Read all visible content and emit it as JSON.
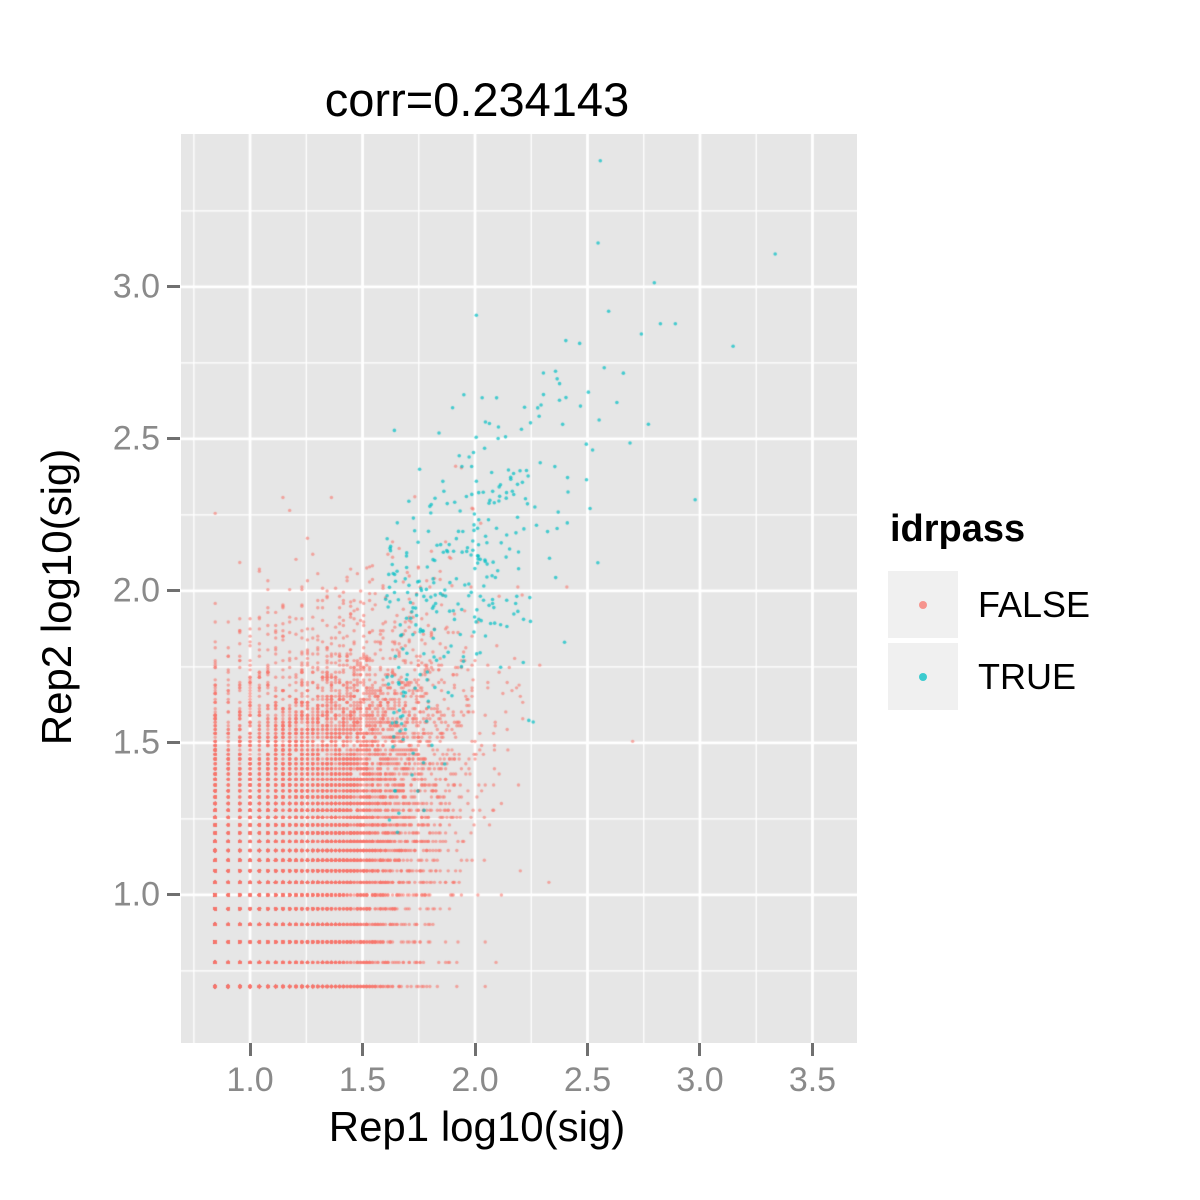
{
  "chart_data": {
    "type": "scatter",
    "title": "corr=0.234143",
    "xlabel": "Rep1 log10(sig)",
    "ylabel": "Rep2 log10(sig)",
    "xlim": [
      0.693,
      3.698
    ],
    "ylim": [
      0.513,
      3.503
    ],
    "x_ticks": [
      1.0,
      1.5,
      2.0,
      2.5,
      3.0,
      3.5
    ],
    "y_ticks": [
      1.0,
      1.5,
      2.0,
      2.5,
      3.0
    ],
    "minor_grid_offset": 0.25,
    "grid": true,
    "panel_bg": "#E6E6E6",
    "grid_major_color": "#FFFFFF",
    "grid_minor_color": "#FFFFFF",
    "tick_mark_color": "#707070",
    "tick_label_color": "#8A8A8A",
    "legend": {
      "title": "idrpass",
      "position": "right",
      "key_bg": "#F0F0F0",
      "entries": [
        {
          "label": "FALSE",
          "color": "#F8766D"
        },
        {
          "label": "TRUE",
          "color": "#00BFC4"
        }
      ]
    },
    "series": [
      {
        "name": "FALSE",
        "color": "#F8766D",
        "alpha": 0.6,
        "point_radius": 1.7,
        "n": 10000,
        "generator": {
          "kind": "censored-quantized-gaussian",
          "seed": 20240601,
          "x_mean": 1.24,
          "x_sd": 0.32,
          "y_mean": 1.19,
          "y_sd": 0.31,
          "xy_corr": 0.35,
          "x_max": 2.75,
          "y_max": 2.55,
          "sig_quantum": 1,
          "x_min_sig": 7,
          "y_min_sig": 5
        }
      },
      {
        "name": "TRUE",
        "color": "#00BFC4",
        "alpha": 0.7,
        "point_radius": 1.8,
        "n": 330,
        "generator": {
          "kind": "diagonal-band",
          "seed": 908070,
          "x_origin": 1.6,
          "x_spread": 0.5,
          "x_max": 3.64,
          "y_intercept": 0.45,
          "y_slope": 0.83,
          "y_noise_sd": 0.26,
          "y_min": 1.18,
          "y_max": 3.44
        }
      }
    ]
  },
  "layout_note": "single scatter panel, legend at right, title on top"
}
